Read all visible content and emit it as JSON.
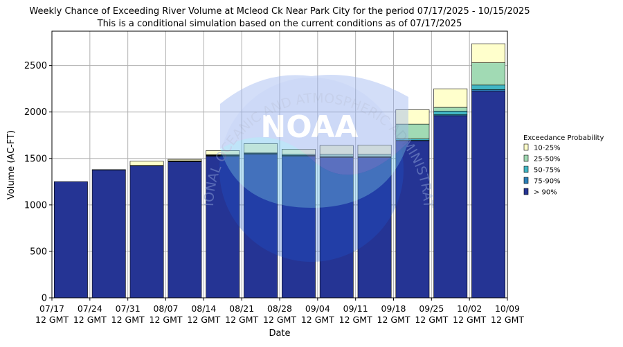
{
  "chart_data": {
    "type": "bar",
    "stacked": true,
    "title": "Weekly Chance of Exceeding River Volume at Mcleod Ck Near Park City for the period 07/17/2025 - 10/15/2025",
    "subtitle": "This is a conditional simulation based on the current conditions as of 07/17/2025",
    "xlabel": "Date",
    "ylabel": "Volume (AC-FT)",
    "ylim": [
      0,
      2870
    ],
    "yticks": [
      0,
      500,
      1000,
      1500,
      2000,
      2500
    ],
    "grid": true,
    "xtick_labels": [
      [
        "07/17",
        "12 GMT"
      ],
      [
        "07/24",
        "12 GMT"
      ],
      [
        "07/31",
        "12 GMT"
      ],
      [
        "08/07",
        "12 GMT"
      ],
      [
        "08/14",
        "12 GMT"
      ],
      [
        "08/21",
        "12 GMT"
      ],
      [
        "08/28",
        "12 GMT"
      ],
      [
        "09/04",
        "12 GMT"
      ],
      [
        "09/11",
        "12 GMT"
      ],
      [
        "09/18",
        "12 GMT"
      ],
      [
        "09/25",
        "12 GMT"
      ],
      [
        "10/02",
        "12 GMT"
      ],
      [
        "10/09",
        "12 GMT"
      ]
    ],
    "legend": {
      "title": "Exceedance Probability",
      "placement": "right",
      "entries": [
        {
          "label": "10-25%",
          "color": "#ffffcc"
        },
        {
          "label": "25-50%",
          "color": "#a1dab4"
        },
        {
          "label": "50-75%",
          "color": "#41b6c4"
        },
        {
          "label": "75-90%",
          "color": "#2c7fb8"
        },
        {
          "label": "> 90%",
          "color": "#253494"
        }
      ]
    },
    "series_order_bottom_to_top": [
      "> 90%",
      "75-90%",
      "50-75%",
      "25-50%",
      "10-25%"
    ],
    "bars": [
      {
        "gt90": 1250,
        "p75_90": 1250,
        "p50_75": 1250,
        "p25_50": 1250,
        "p10_25": 1250
      },
      {
        "gt90": 1375,
        "p75_90": 1380,
        "p50_75": 1380,
        "p25_50": 1380,
        "p10_25": 1380
      },
      {
        "gt90": 1420,
        "p75_90": 1420,
        "p50_75": 1420,
        "p25_50": 1425,
        "p10_25": 1470
      },
      {
        "gt90": 1465,
        "p75_90": 1465,
        "p50_75": 1470,
        "p25_50": 1475,
        "p10_25": 1490
      },
      {
        "gt90": 1525,
        "p75_90": 1530,
        "p50_75": 1535,
        "p25_50": 1540,
        "p10_25": 1585
      },
      {
        "gt90": 1545,
        "p75_90": 1550,
        "p50_75": 1555,
        "p25_50": 1560,
        "p10_25": 1660
      },
      {
        "gt90": 1525,
        "p75_90": 1530,
        "p50_75": 1535,
        "p25_50": 1545,
        "p10_25": 1600
      },
      {
        "gt90": 1510,
        "p75_90": 1515,
        "p50_75": 1520,
        "p25_50": 1545,
        "p10_25": 1640
      },
      {
        "gt90": 1510,
        "p75_90": 1515,
        "p50_75": 1520,
        "p25_50": 1545,
        "p10_25": 1645
      },
      {
        "gt90": 1690,
        "p75_90": 1695,
        "p50_75": 1710,
        "p25_50": 1870,
        "p10_25": 2025
      },
      {
        "gt90": 1960,
        "p75_90": 1970,
        "p50_75": 2010,
        "p25_50": 2050,
        "p10_25": 2250
      },
      {
        "gt90": 2225,
        "p75_90": 2240,
        "p50_75": 2290,
        "p25_50": 2530,
        "p10_25": 2735
      }
    ],
    "watermark": {
      "text": "NOAA",
      "ring_text": "NATIONAL OCEANIC AND ATMOSPHERIC ADMINISTRATION"
    }
  }
}
